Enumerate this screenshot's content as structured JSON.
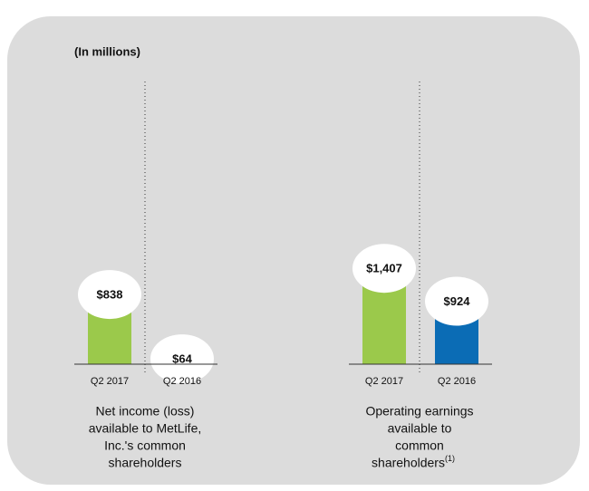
{
  "units": "(In millions)",
  "chart_data": [
    {
      "type": "bar",
      "title_lines": [
        "Net income (loss)",
        "available to MetLife,",
        "Inc.'s common",
        "shareholders"
      ],
      "categories": [
        "Q2 2017",
        "Q2 2016"
      ],
      "values": [
        838,
        64
      ],
      "value_labels": [
        "$838",
        "$64"
      ],
      "colors": [
        "#9bc94b",
        "#0b6cb5"
      ],
      "ylim": [
        0,
        3400
      ]
    },
    {
      "type": "bar",
      "title_lines": [
        "Operating earnings",
        "available to",
        "common",
        "shareholders"
      ],
      "footnote": "(1)",
      "categories": [
        "Q2 2017",
        "Q2 2016"
      ],
      "values": [
        1407,
        924
      ],
      "value_labels": [
        "$1,407",
        "$924"
      ],
      "colors": [
        "#9bc94b",
        "#0b6cb5"
      ],
      "ylim": [
        0,
        4150
      ]
    }
  ]
}
